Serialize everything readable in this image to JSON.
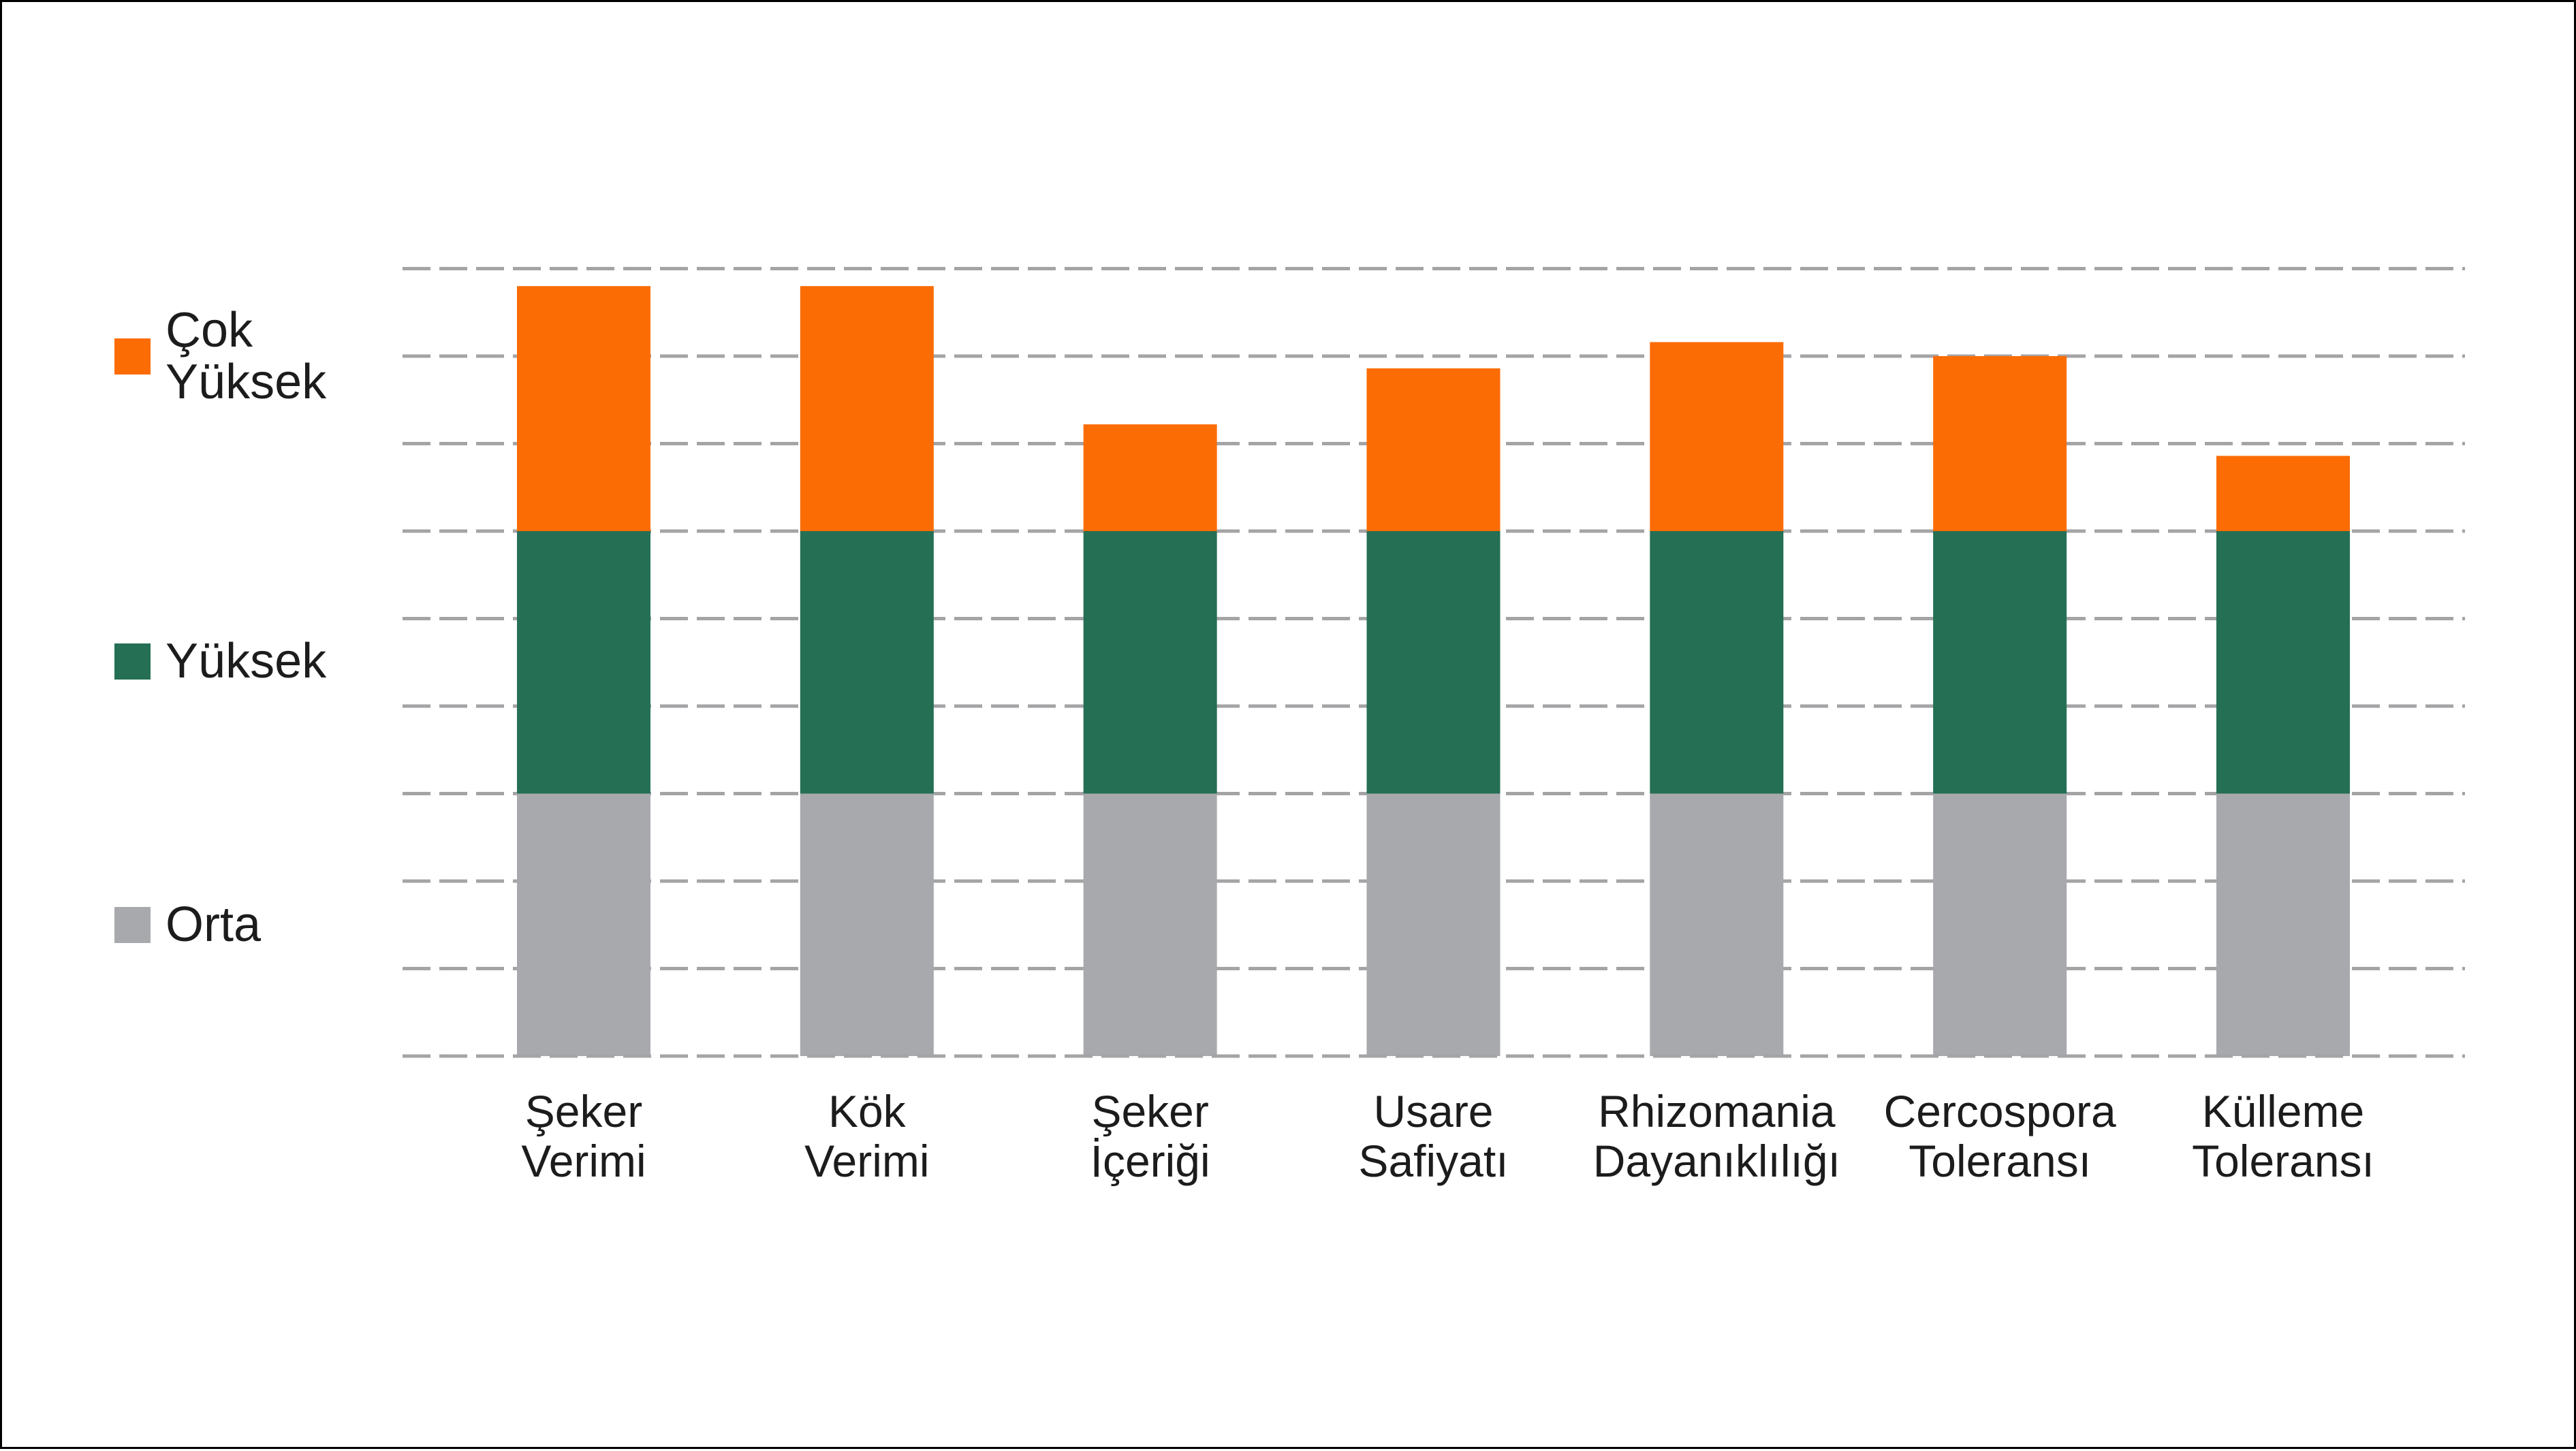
{
  "chart_data": {
    "type": "bar",
    "stacked": true,
    "title": "",
    "xlabel": "",
    "ylabel": "",
    "categories": [
      "Şeker\nVerimi",
      "Kök\nVerimi",
      "Şeker\nİçeriği",
      "Usare\nSafiyatı",
      "Rhizomania\nDayanıklılığı",
      "Cercospora\nToleransı",
      "Külleme\nToleransı"
    ],
    "series": [
      {
        "name": "Orta",
        "color": "#A7A9AC",
        "values": [
          1.5,
          1.5,
          1.5,
          1.5,
          1.5,
          1.5,
          1.5
        ]
      },
      {
        "name": "Yüksek",
        "color": "#256F54",
        "values": [
          1.5,
          1.5,
          1.5,
          1.5,
          1.5,
          1.5,
          1.5
        ]
      },
      {
        "name": "Çok Yüksek",
        "color": "#FC6C04",
        "values": [
          1.4,
          1.4,
          0.61,
          0.93,
          1.08,
          1.0,
          0.43
        ]
      }
    ],
    "totals": [
      4.4,
      4.4,
      3.61,
      3.93,
      4.08,
      4.0,
      3.43
    ],
    "ylim": [
      0,
      4.5
    ],
    "gridline_step": 0.5,
    "grid": "dashed-horizontal",
    "y_tick_labels_visible": false,
    "legend_position": "left"
  },
  "legend": {
    "items": [
      {
        "label": "Çok\nYüksek",
        "color": "#FC6C04"
      },
      {
        "label": "Yüksek",
        "color": "#256F54"
      },
      {
        "label": "Orta",
        "color": "#A7A9AC"
      }
    ]
  },
  "colors": {
    "background": "#FFFFFF",
    "border": "#000000",
    "gridline": "#A4A4A7",
    "text": "#1C1C1C",
    "orange": "#FC6C04",
    "green": "#256F54",
    "gray": "#A7A9AC"
  }
}
